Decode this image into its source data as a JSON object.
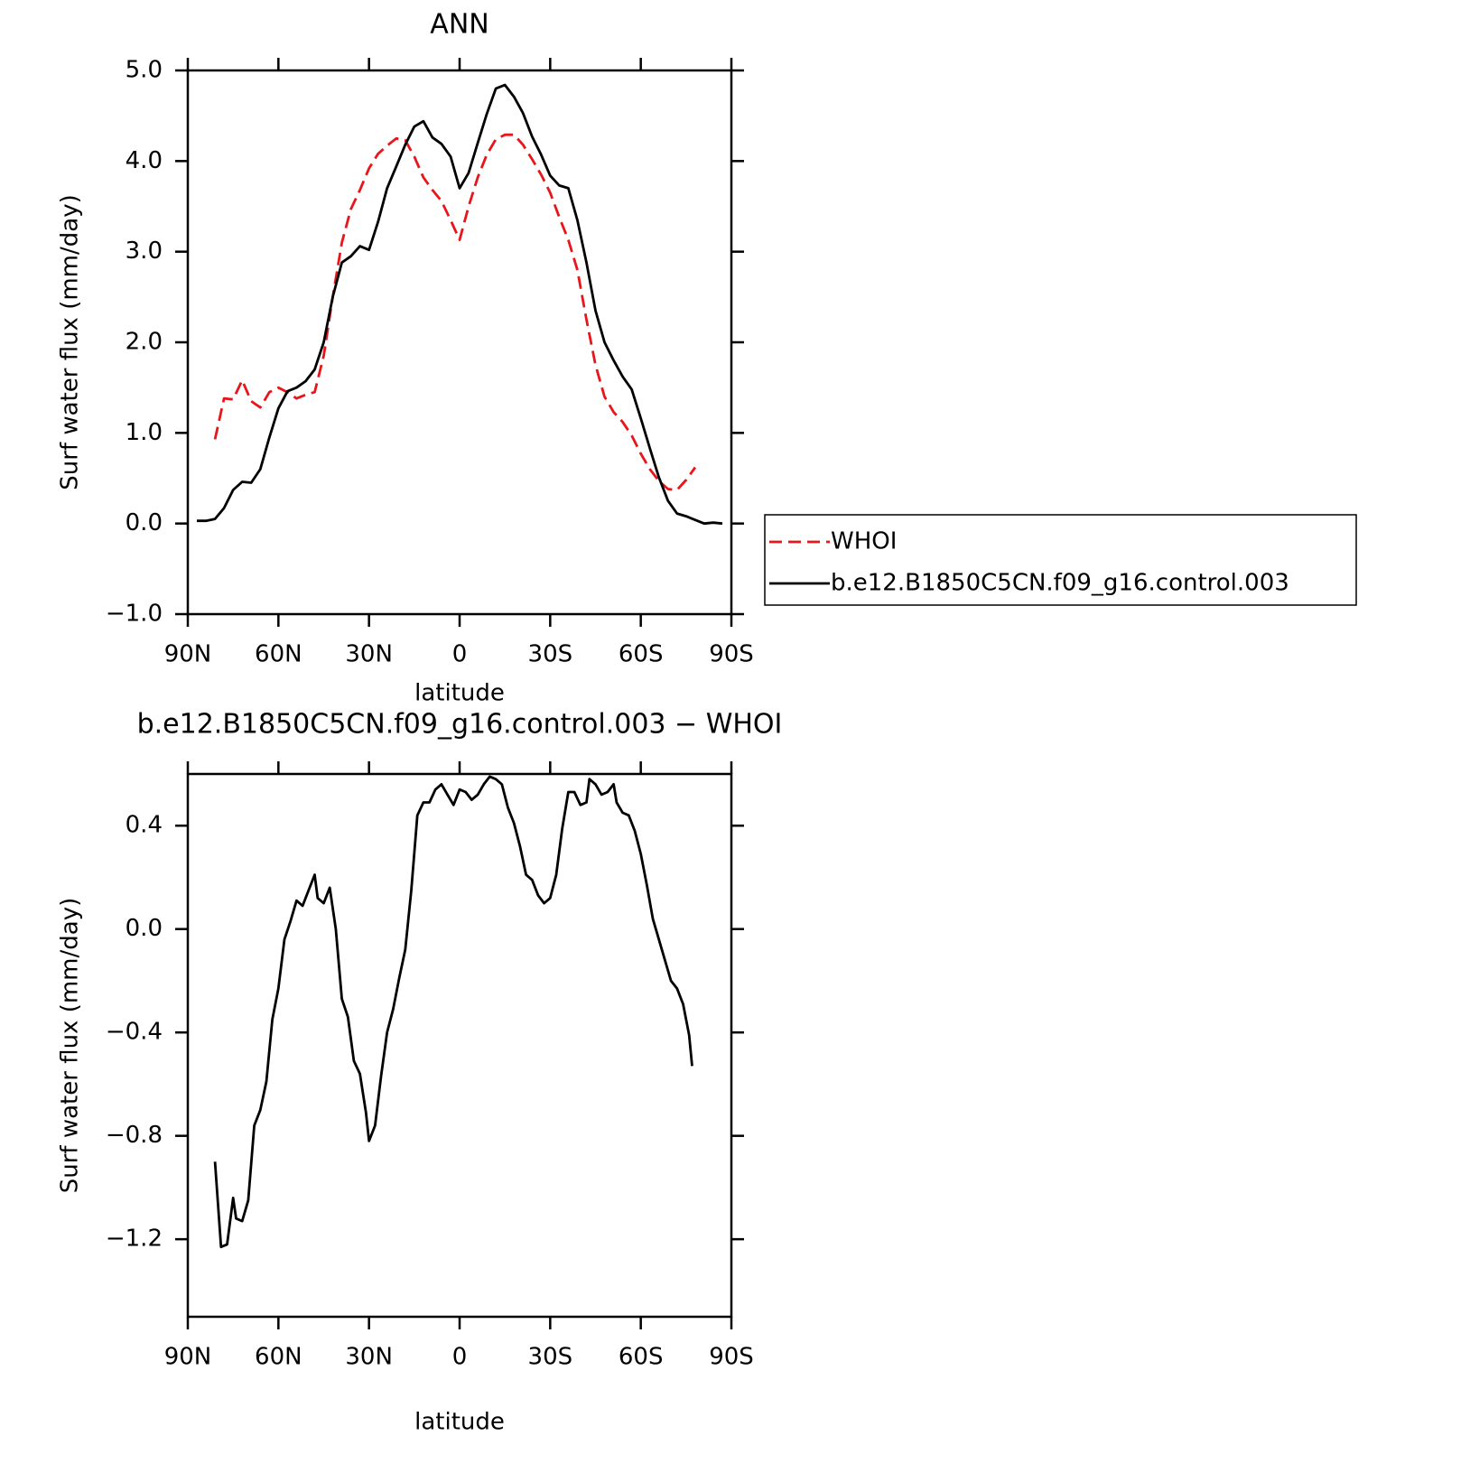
{
  "chart_data": [
    {
      "type": "line",
      "title": "ANN",
      "xlabel": "latitude",
      "ylabel": "Surf water flux (mm/day)",
      "xlim": [
        90,
        -90
      ],
      "xticks": [
        {
          "value": 90,
          "label": "90N"
        },
        {
          "value": 60,
          "label": "60N"
        },
        {
          "value": 30,
          "label": "30N"
        },
        0,
        {
          "value": -30,
          "label": "30S"
        },
        {
          "value": -60,
          "label": "60S"
        },
        {
          "value": -90,
          "label": "90S"
        }
      ],
      "ylim": [
        -1,
        5
      ],
      "yticks": [
        {
          "value": -1,
          "label": "−1.0"
        },
        {
          "value": 0,
          "label": "0.0"
        },
        {
          "value": 1,
          "label": "1.0"
        },
        {
          "value": 2,
          "label": "2.0"
        },
        {
          "value": 3,
          "label": "3.0"
        },
        {
          "value": 4,
          "label": "4.0"
        },
        {
          "value": 5,
          "label": "5.0"
        }
      ],
      "x": [
        87,
        84,
        81,
        78,
        75,
        72,
        69,
        66,
        63,
        60,
        57,
        54,
        51,
        48,
        45,
        42,
        39,
        36,
        33,
        30,
        27,
        24,
        21,
        18,
        15,
        12,
        9,
        6,
        3,
        0,
        -3,
        -6,
        -9,
        -12,
        -15,
        -18,
        -21,
        -24,
        -27,
        -30,
        -33,
        -36,
        -39,
        -42,
        -45,
        -48,
        -51,
        -54,
        -57,
        -60,
        -63,
        -66,
        -69,
        -72,
        -75,
        -78,
        -81,
        -84,
        -87
      ],
      "series": [
        {
          "name": "WHOI",
          "color": "#e8151b",
          "linestyle": "dashed",
          "values": [
            null,
            null,
            0.93,
            1.38,
            1.37,
            1.58,
            1.35,
            1.28,
            1.45,
            1.5,
            1.45,
            1.38,
            1.42,
            1.45,
            1.85,
            2.5,
            3.1,
            3.47,
            3.68,
            3.92,
            4.08,
            4.17,
            4.25,
            4.23,
            4.05,
            3.82,
            3.68,
            3.56,
            3.35,
            3.13,
            3.5,
            3.82,
            4.07,
            4.24,
            4.29,
            4.29,
            4.18,
            4.02,
            3.85,
            3.65,
            3.38,
            3.13,
            2.8,
            2.25,
            1.75,
            1.4,
            1.23,
            1.12,
            0.97,
            0.77,
            0.6,
            0.47,
            0.38,
            0.37,
            0.48,
            0.62,
            null,
            null,
            null
          ]
        },
        {
          "name": "b.e12.B1850C5CN.f09_g16.control.003",
          "color": "#000000",
          "linestyle": "solid",
          "values": [
            0.03,
            0.03,
            0.05,
            0.17,
            0.37,
            0.46,
            0.45,
            0.6,
            0.95,
            1.27,
            1.46,
            1.5,
            1.57,
            1.7,
            2.0,
            2.5,
            2.88,
            2.95,
            3.06,
            3.02,
            3.33,
            3.7,
            3.94,
            4.18,
            4.38,
            4.44,
            4.26,
            4.19,
            4.05,
            3.7,
            3.87,
            4.2,
            4.52,
            4.8,
            4.84,
            4.71,
            4.53,
            4.27,
            4.07,
            3.84,
            3.73,
            3.7,
            3.35,
            2.88,
            2.35,
            2.0,
            1.8,
            1.62,
            1.48,
            1.16,
            0.83,
            0.51,
            0.25,
            0.11,
            0.08,
            0.04,
            0.0,
            0.01,
            0.0
          ]
        }
      ]
    },
    {
      "type": "line",
      "title": "b.e12.B1850C5CN.f09_g16.control.003 − WHOI",
      "xlabel": "latitude",
      "ylabel": "Surf water flux (mm/day)",
      "xlim": [
        90,
        -90
      ],
      "xticks": [
        {
          "value": 90,
          "label": "90N"
        },
        {
          "value": 60,
          "label": "60N"
        },
        {
          "value": 30,
          "label": "30N"
        },
        0,
        {
          "value": -30,
          "label": "30S"
        },
        {
          "value": -60,
          "label": "60S"
        },
        {
          "value": -90,
          "label": "90S"
        }
      ],
      "ylim": [
        -1.5,
        0.6
      ],
      "yticks": [
        {
          "value": -1.2,
          "label": "−1.2"
        },
        {
          "value": -0.8,
          "label": "−0.8"
        },
        {
          "value": -0.4,
          "label": "−0.4"
        },
        {
          "value": 0,
          "label": "0.0"
        },
        0.4
      ],
      "x": [
        81,
        79,
        77,
        75,
        74,
        72,
        70,
        68,
        66,
        64,
        62,
        60,
        58,
        56,
        54,
        52,
        50,
        48,
        47,
        45,
        43,
        41,
        39,
        37,
        35,
        33,
        31,
        30,
        28,
        26,
        24,
        22,
        20,
        18,
        16,
        14,
        12,
        10,
        8,
        6,
        4,
        2,
        0,
        -2,
        -4,
        -6,
        -8,
        -10,
        -12,
        -14,
        -16,
        -18,
        -20,
        -22,
        -24,
        -26,
        -28,
        -30,
        -32,
        -34,
        -36,
        -38,
        -40,
        -42,
        -43,
        -45,
        -47,
        -49,
        -51,
        -52,
        -54,
        -56,
        -58,
        -60,
        -62,
        -64,
        -66,
        -68,
        -70,
        -72,
        -74,
        -76,
        -77
      ],
      "color": "#000000",
      "values": [
        -0.9,
        -1.23,
        -1.22,
        -1.04,
        -1.12,
        -1.13,
        -1.05,
        -0.76,
        -0.7,
        -0.59,
        -0.35,
        -0.23,
        -0.04,
        0.03,
        0.11,
        0.09,
        0.15,
        0.21,
        0.12,
        0.1,
        0.16,
        0.0,
        -0.27,
        -0.34,
        -0.51,
        -0.56,
        -0.71,
        -0.82,
        -0.76,
        -0.57,
        -0.4,
        -0.31,
        -0.19,
        -0.08,
        0.15,
        0.44,
        0.49,
        0.49,
        0.54,
        0.56,
        0.52,
        0.48,
        0.54,
        0.53,
        0.5,
        0.52,
        0.56,
        0.59,
        0.58,
        0.56,
        0.47,
        0.41,
        0.32,
        0.21,
        0.19,
        0.13,
        0.1,
        0.12,
        0.21,
        0.39,
        0.53,
        0.53,
        0.48,
        0.49,
        0.58,
        0.56,
        0.52,
        0.53,
        0.56,
        0.49,
        0.45,
        0.44,
        0.38,
        0.29,
        0.17,
        0.04,
        -0.04,
        -0.12,
        -0.2,
        -0.23,
        -0.29,
        -0.41,
        -0.53
      ]
    }
  ]
}
